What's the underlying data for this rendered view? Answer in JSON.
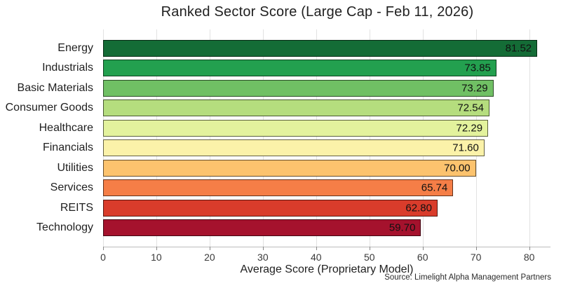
{
  "chart_data": {
    "type": "bar",
    "orientation": "horizontal",
    "title": "Ranked Sector Score (Large Cap - Feb 11, 2026)",
    "xlabel": "Average Score (Proprietary Model)",
    "source": "Source: Limelight Alpha Management Partners",
    "categories": [
      "Energy",
      "Industrials",
      "Basic Materials",
      "Consumer Goods",
      "Healthcare",
      "Financials",
      "Utilities",
      "Services",
      "REITS",
      "Technology"
    ],
    "values": [
      81.52,
      73.85,
      73.29,
      72.54,
      72.29,
      71.6,
      70.0,
      65.74,
      62.8,
      59.7
    ],
    "value_labels": [
      "81.52",
      "73.85",
      "73.29",
      "72.54",
      "72.29",
      "71.60",
      "70.00",
      "65.74",
      "62.80",
      "59.70"
    ],
    "bar_colors": [
      "#146c36",
      "#23a04f",
      "#70c064",
      "#b5dd7e",
      "#e3f29d",
      "#fbf2a9",
      "#fcc36e",
      "#f57e47",
      "#d93c2b",
      "#a5122d"
    ],
    "xlim": [
      0,
      84
    ],
    "xticks": [
      0,
      10,
      20,
      30,
      40,
      50,
      60,
      70,
      80
    ],
    "grid": true,
    "legend": false
  },
  "colors": {
    "background": "#ffffff",
    "gridline": "#e2e2e2",
    "axis_line": "#bdbdbd",
    "bar_edge": "#1a1a1a",
    "title_text": "#1f1f1f",
    "tick_text": "#3a3a3a"
  }
}
